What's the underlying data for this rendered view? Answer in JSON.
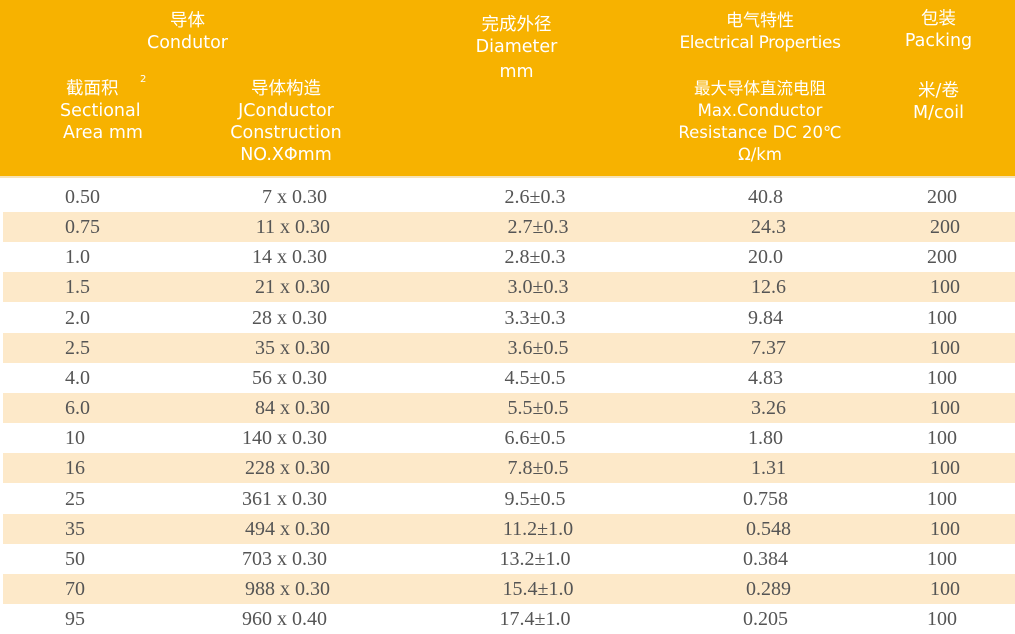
{
  "header": {
    "conductor": {
      "zh": "导体",
      "en": "Condutor"
    },
    "area": {
      "zh": "截面积",
      "sup": "2",
      "en1": "Sectional",
      "en2": "Area mm"
    },
    "construction": {
      "zh": "导体构造",
      "en1": "JConductor",
      "en2": "Construction",
      "en3": "NO.XΦmm"
    },
    "diameter": {
      "zh": "完成外径",
      "en": "Diameter",
      "unit": "mm"
    },
    "electrical": {
      "zh": "电气特性",
      "en": "Electrical Properties"
    },
    "resistance": {
      "zh": "最大导体直流电阻",
      "en1": "Max.Conductor",
      "en2": "Resistance DC 20℃",
      "unit": "Ω/km"
    },
    "packing": {
      "zh": "包装",
      "en": "Packing"
    },
    "packing_unit": {
      "zh": "米/卷",
      "en": "M/coil"
    }
  },
  "rows": [
    [
      "0.50",
      "7 x 0.30",
      "2.6±0.3",
      "40.8",
      "200"
    ],
    [
      "0.75",
      "11 x 0.30",
      "2.7±0.3",
      "24.3",
      "200"
    ],
    [
      "1.0",
      "14 x 0.30",
      "2.8±0.3",
      "20.0",
      "200"
    ],
    [
      "1.5",
      "21 x 0.30",
      "3.0±0.3",
      "12.6",
      "100"
    ],
    [
      "2.0",
      "28 x 0.30",
      "3.3±0.3",
      "9.84",
      "100"
    ],
    [
      "2.5",
      "35 x 0.30",
      "3.6±0.5",
      "7.37",
      "100"
    ],
    [
      "4.0",
      "56 x 0.30",
      "4.5±0.5",
      "4.83",
      "100"
    ],
    [
      "6.0",
      "84 x 0.30",
      "5.5±0.5",
      "3.26",
      "100"
    ],
    [
      "10",
      "140 x 0.30",
      "6.6±0.5",
      "1.80",
      "100"
    ],
    [
      "16",
      "228 x 0.30",
      "7.8±0.5",
      "1.31",
      "100"
    ],
    [
      "25",
      "361 x 0.30",
      "9.5±0.5",
      "0.758",
      "100"
    ],
    [
      "35",
      "494 x 0.30",
      "11.2±1.0",
      "0.548",
      "100"
    ],
    [
      "50",
      "703 x 0.30",
      "13.2±1.0",
      "0.384",
      "100"
    ],
    [
      "70",
      "988 x 0.30",
      "15.4±1.0",
      "0.289",
      "100"
    ],
    [
      "95",
      "960 x 0.40",
      "17.4±1.0",
      "0.205",
      "100"
    ]
  ],
  "colors": {
    "header": "#f7b200",
    "stripe": "#fde9c9",
    "text": "#555555"
  }
}
